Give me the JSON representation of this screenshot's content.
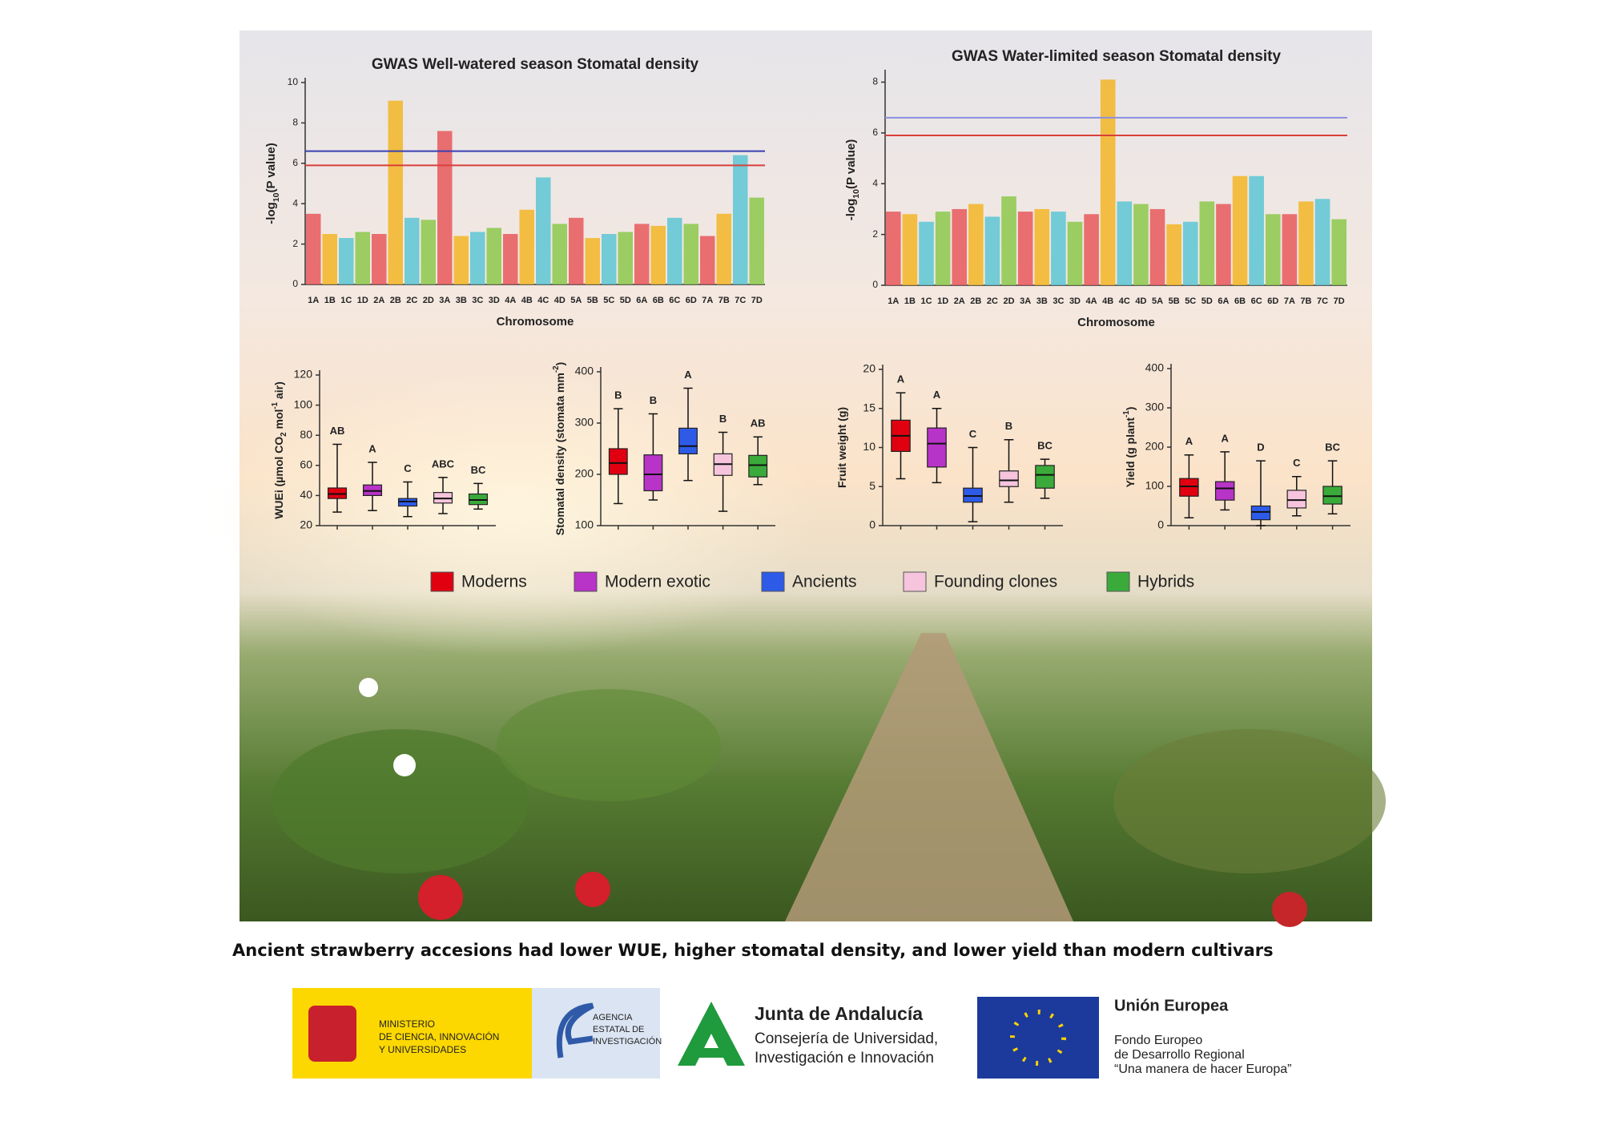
{
  "chart_data": [
    {
      "type": "manhattan",
      "title": "GWAS Well-watered season Stomatal density",
      "xlabel": "Chromosome",
      "ylabel": [
        "-log",
        "10",
        "(P value)"
      ],
      "ylabel_format": [
        "normal",
        "sub",
        "normal"
      ],
      "categories": [
        "1A",
        "1B",
        "1C",
        "1D",
        "2A",
        "2B",
        "2C",
        "2D",
        "3A",
        "3B",
        "3C",
        "3D",
        "4A",
        "4B",
        "4C",
        "4D",
        "5A",
        "5B",
        "5C",
        "5D",
        "6A",
        "6B",
        "6C",
        "6D",
        "7A",
        "7B",
        "7C",
        "7D"
      ],
      "values": [
        3.5,
        2.5,
        2.3,
        2.6,
        2.5,
        9.1,
        3.3,
        3.2,
        7.6,
        2.4,
        2.6,
        2.8,
        2.5,
        3.7,
        5.3,
        3.0,
        3.3,
        2.3,
        2.5,
        2.6,
        3.0,
        2.9,
        3.3,
        3.0,
        2.4,
        3.5,
        6.4,
        4.3
      ],
      "colors": [
        "#e8585c",
        "#f2b526",
        "#5cc6d3",
        "#8cc84b"
      ],
      "thresholds": [
        {
          "value": 6.6,
          "color": "#3a3fb0"
        },
        {
          "value": 5.9,
          "color": "#d9403a"
        }
      ],
      "ylim": [
        0,
        10
      ],
      "yticks": [
        0,
        2,
        4,
        6,
        8,
        10
      ]
    },
    {
      "type": "manhattan",
      "title": "GWAS Water-limited season Stomatal density",
      "xlabel": "Chromosome",
      "ylabel": [
        "-log",
        "10",
        "(P value)"
      ],
      "ylabel_format": [
        "normal",
        "sub",
        "normal"
      ],
      "categories": [
        "1A",
        "1B",
        "1C",
        "1D",
        "2A",
        "2B",
        "2C",
        "2D",
        "3A",
        "3B",
        "3C",
        "3D",
        "4A",
        "4B",
        "4C",
        "4D",
        "5A",
        "5B",
        "5C",
        "5D",
        "6A",
        "6B",
        "6C",
        "6D",
        "7A",
        "7B",
        "7C",
        "7D"
      ],
      "values": [
        2.9,
        2.8,
        2.5,
        2.9,
        3.0,
        3.2,
        2.7,
        3.5,
        2.9,
        3.0,
        2.9,
        2.5,
        2.8,
        8.1,
        3.3,
        3.2,
        3.0,
        2.4,
        2.5,
        3.3,
        3.2,
        4.3,
        4.3,
        2.8,
        2.8,
        3.3,
        3.4,
        2.6
      ],
      "colors": [
        "#e8585c",
        "#f2b526",
        "#5cc6d3",
        "#8cc84b"
      ],
      "thresholds": [
        {
          "value": 6.6,
          "color": "#8a90e0"
        },
        {
          "value": 5.9,
          "color": "#d9403a"
        }
      ],
      "ylim": [
        0,
        8.3
      ],
      "yticks": [
        0,
        2,
        4,
        6,
        8
      ]
    },
    {
      "type": "box",
      "ylabel": [
        "WUEi (µmol CO",
        "2",
        " mol",
        "-1",
        " air)"
      ],
      "ylabel_format": [
        "normal",
        "sub",
        "normal",
        "sup",
        "normal"
      ],
      "groups": [
        {
          "min": 29,
          "q1": 38,
          "median": 41,
          "q3": 45,
          "max": 74,
          "letter": "AB"
        },
        {
          "min": 30,
          "q1": 40,
          "median": 43,
          "q3": 47,
          "max": 62,
          "letter": "A"
        },
        {
          "min": 26,
          "q1": 33,
          "median": 36,
          "q3": 38,
          "max": 49,
          "letter": "C"
        },
        {
          "min": 28,
          "q1": 35,
          "median": 38,
          "q3": 42,
          "max": 52,
          "letter": "ABC"
        },
        {
          "min": 31,
          "q1": 34,
          "median": 37,
          "q3": 41,
          "max": 48,
          "letter": "BC"
        }
      ],
      "ylim": [
        20,
        120
      ],
      "yticks": [
        20,
        40,
        60,
        80,
        100,
        120
      ]
    },
    {
      "type": "box",
      "ylabel": [
        "Stomatal density (stomata mm",
        "-2",
        ")"
      ],
      "ylabel_format": [
        "normal",
        "sup",
        "normal"
      ],
      "groups": [
        {
          "min": 143,
          "q1": 200,
          "median": 222,
          "q3": 250,
          "max": 328,
          "letter": "B"
        },
        {
          "min": 150,
          "q1": 168,
          "median": 200,
          "q3": 238,
          "max": 318,
          "letter": "B"
        },
        {
          "min": 188,
          "q1": 240,
          "median": 255,
          "q3": 290,
          "max": 368,
          "letter": "A"
        },
        {
          "min": 128,
          "q1": 198,
          "median": 220,
          "q3": 240,
          "max": 282,
          "letter": "B"
        },
        {
          "min": 180,
          "q1": 195,
          "median": 218,
          "q3": 237,
          "max": 273,
          "letter": "AB"
        }
      ],
      "ylim": [
        100,
        400
      ],
      "yticks": [
        100,
        200,
        300,
        400
      ]
    },
    {
      "type": "box",
      "ylabel": [
        "Fruit weight (g)"
      ],
      "ylabel_format": [
        "normal"
      ],
      "groups": [
        {
          "min": 6,
          "q1": 9.5,
          "median": 11.5,
          "q3": 13.5,
          "max": 17,
          "letter": "A"
        },
        {
          "min": 5.5,
          "q1": 7.5,
          "median": 10.5,
          "q3": 12.5,
          "max": 15,
          "letter": "A"
        },
        {
          "min": 0.5,
          "q1": 3,
          "median": 3.8,
          "q3": 4.8,
          "max": 10,
          "letter": "C"
        },
        {
          "min": 3,
          "q1": 5,
          "median": 5.8,
          "q3": 7,
          "max": 11,
          "letter": "B"
        },
        {
          "min": 3.5,
          "q1": 4.8,
          "median": 6.5,
          "q3": 7.7,
          "max": 8.5,
          "letter": "BC"
        }
      ],
      "ylim": [
        0,
        20
      ],
      "yticks": [
        0,
        5,
        10,
        15,
        20
      ]
    },
    {
      "type": "box",
      "ylabel": [
        "Yield (g plant",
        "-1",
        ")"
      ],
      "ylabel_format": [
        "normal",
        "sup",
        "normal"
      ],
      "groups": [
        {
          "min": 20,
          "q1": 75,
          "median": 100,
          "q3": 120,
          "max": 180,
          "letter": "A"
        },
        {
          "min": 40,
          "q1": 65,
          "median": 95,
          "q3": 112,
          "max": 188,
          "letter": "A"
        },
        {
          "min": 0,
          "q1": 15,
          "median": 35,
          "q3": 50,
          "max": 165,
          "letter": "D"
        },
        {
          "min": 25,
          "q1": 45,
          "median": 65,
          "q3": 90,
          "max": 125,
          "letter": "C"
        },
        {
          "min": 30,
          "q1": 55,
          "median": 75,
          "q3": 100,
          "max": 165,
          "letter": "BC"
        }
      ],
      "ylim": [
        0,
        400
      ],
      "yticks": [
        0,
        100,
        200,
        300,
        400
      ]
    }
  ],
  "legend": [
    {
      "name": "Moderns",
      "color": "#e00010"
    },
    {
      "name": "Modern exotic",
      "color": "#b833c8"
    },
    {
      "name": "Ancients",
      "color": "#2d5be8"
    },
    {
      "name": "Founding clones",
      "color": "#f6c4dc"
    },
    {
      "name": "Hybrids",
      "color": "#3aab3a"
    }
  ],
  "caption": "Ancient strawberry accesions had lower WUE, higher stomatal density, and lower yield than modern cultivars",
  "logos": {
    "ministry": [
      "MINISTERIO",
      "DE CIENCIA, INNOVACIÓN",
      "Y UNIVERSIDADES"
    ],
    "agency": [
      "AGENCIA",
      "ESTATAL DE",
      "INVESTIGACIÓN"
    ],
    "junta": {
      "name": "Junta de Andalucía",
      "lines": [
        "Consejería de Universidad,",
        "Investigación e Innovación"
      ]
    },
    "eu": {
      "name": "Unión Europea",
      "lines": [
        "Fondo Europeo",
        "de Desarrollo Regional",
        "“Una manera de hacer Europa”"
      ]
    }
  }
}
